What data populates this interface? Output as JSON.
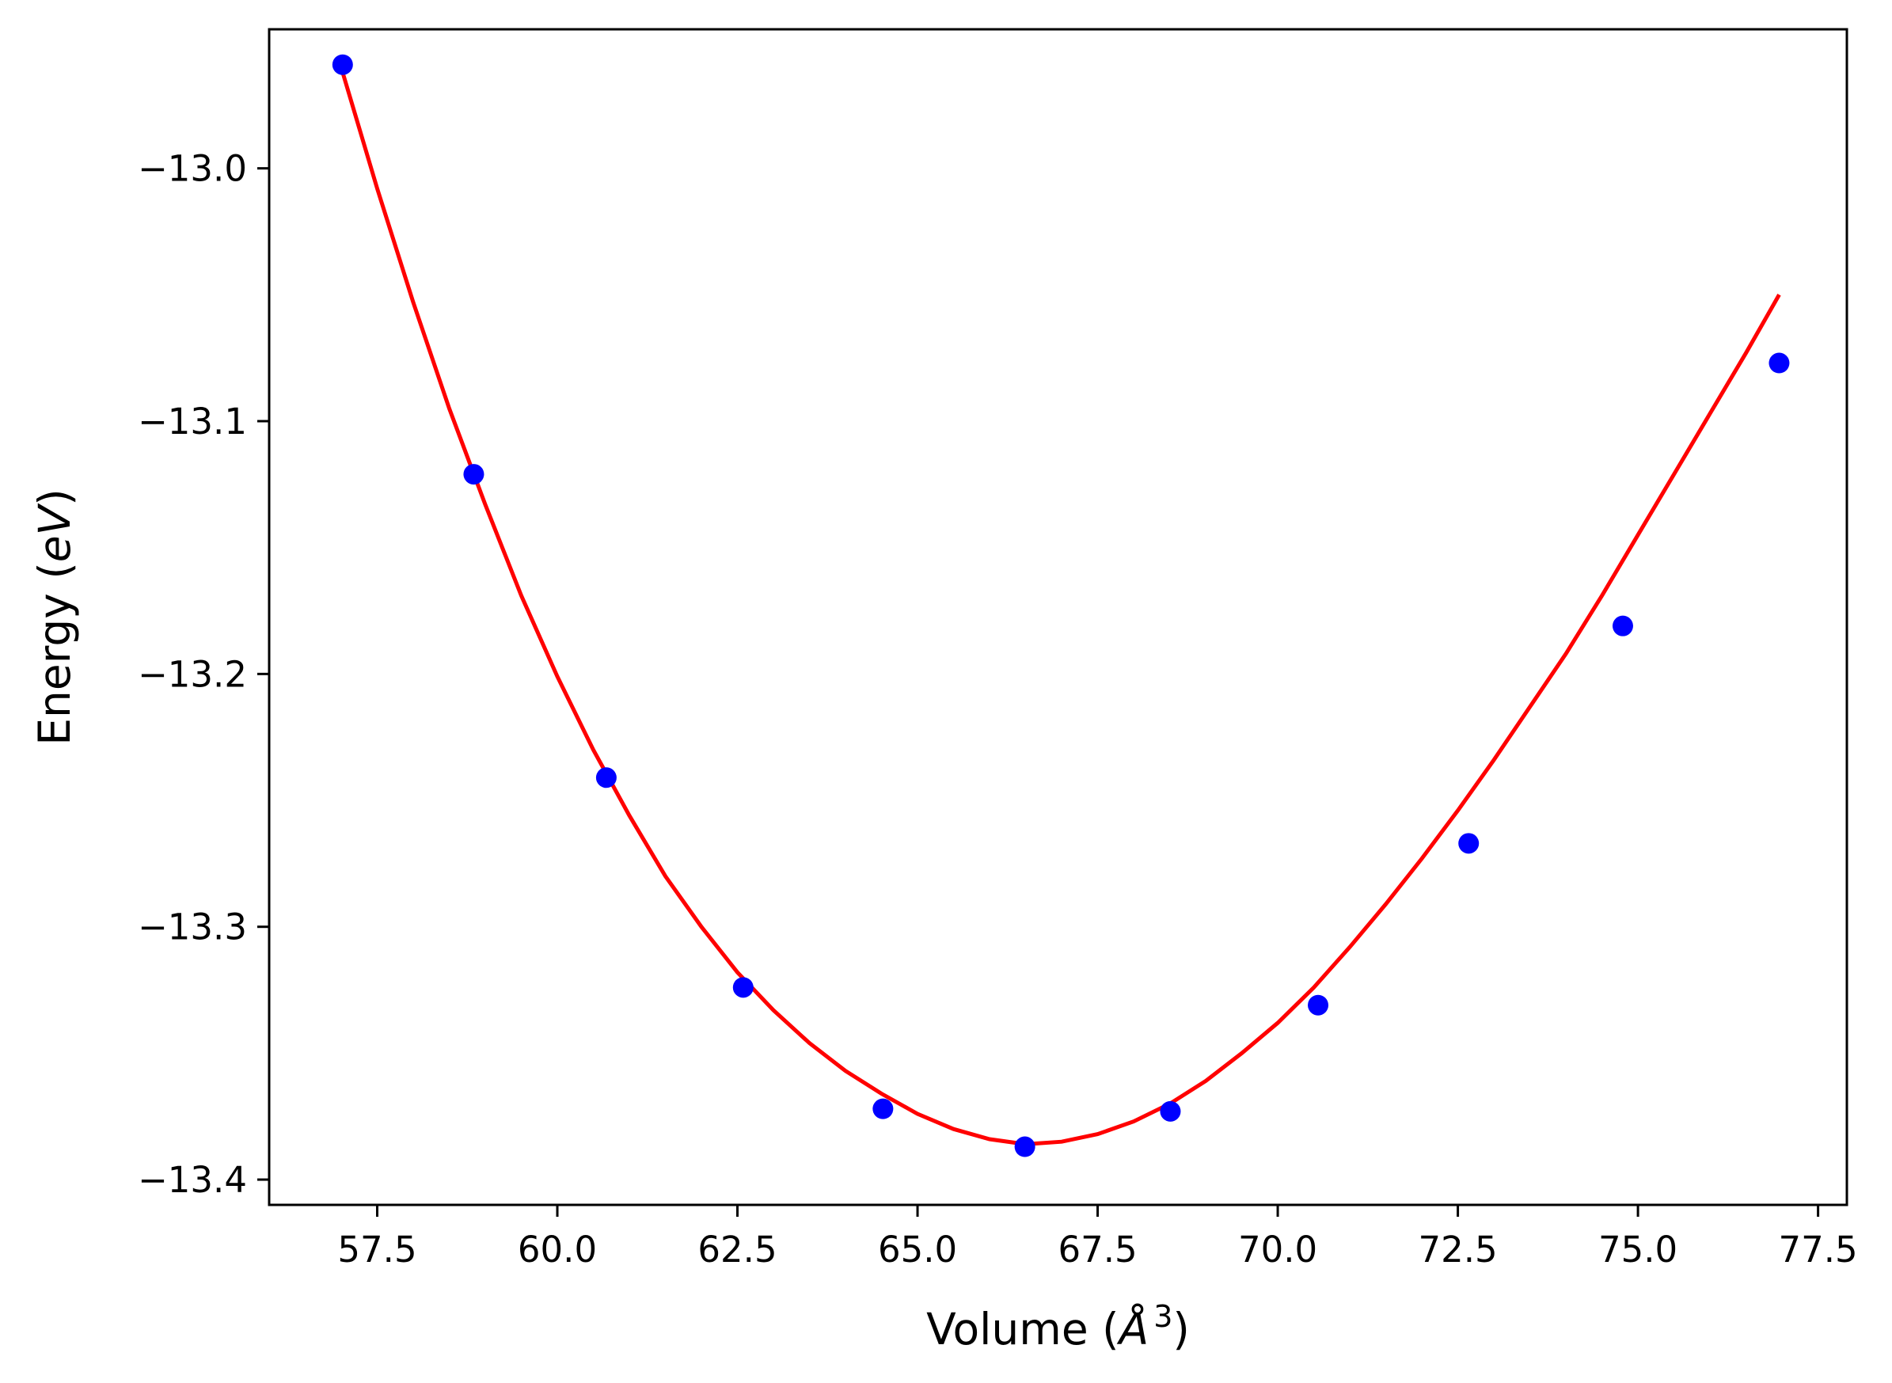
{
  "chart_data": {
    "type": "scatter",
    "xlabel": {
      "prefix": "Volume (",
      "symbol": "Å",
      "exponent": "3",
      "suffix": ")"
    },
    "ylabel": {
      "prefix": "Energy (",
      "symbol": "eV",
      "suffix": ")"
    },
    "xlim": [
      56.0,
      77.9
    ],
    "ylim": [
      -13.41,
      -12.945
    ],
    "x_ticks": [
      57.5,
      60.0,
      62.5,
      65.0,
      67.5,
      70.0,
      72.5,
      75.0,
      77.5
    ],
    "x_tick_labels": [
      "57.5",
      "60.0",
      "62.5",
      "65.0",
      "67.5",
      "70.0",
      "72.5",
      "75.0",
      "77.5"
    ],
    "y_ticks": [
      -13.0,
      -13.1,
      -13.2,
      -13.3,
      -13.4
    ],
    "y_tick_labels": [
      "−13.0",
      "−13.1",
      "−13.2",
      "−13.3",
      "−13.4"
    ],
    "grid": false,
    "series": [
      {
        "kind": "points",
        "color": "#0000ff",
        "x": [
          57.02,
          58.84,
          60.68,
          62.58,
          64.52,
          66.49,
          68.51,
          70.56,
          72.65,
          74.79,
          76.96
        ],
        "y": [
          -12.959,
          -13.121,
          -13.241,
          -13.324,
          -13.372,
          -13.387,
          -13.373,
          -13.331,
          -13.267,
          -13.181,
          -13.077
        ]
      },
      {
        "kind": "fit-curve",
        "color": "#ff0000",
        "x": [
          57.02,
          57.5,
          58.0,
          58.5,
          59.0,
          59.5,
          60.0,
          60.5,
          61.0,
          61.5,
          62.0,
          62.5,
          63.0,
          63.5,
          64.0,
          64.5,
          65.0,
          65.5,
          66.0,
          66.5,
          67.0,
          67.5,
          68.0,
          68.5,
          69.0,
          69.5,
          70.0,
          70.5,
          71.0,
          71.5,
          72.0,
          72.5,
          73.0,
          73.5,
          74.0,
          74.5,
          75.0,
          75.5,
          76.0,
          76.5,
          76.96
        ],
        "y": [
          -12.962,
          -13.008,
          -13.053,
          -13.095,
          -13.133,
          -13.169,
          -13.201,
          -13.23,
          -13.256,
          -13.28,
          -13.3,
          -13.318,
          -13.333,
          -13.346,
          -13.357,
          -13.366,
          -13.374,
          -13.38,
          -13.384,
          -13.386,
          -13.385,
          -13.382,
          -13.377,
          -13.37,
          -13.361,
          -13.35,
          -13.338,
          -13.324,
          -13.308,
          -13.291,
          -13.273,
          -13.254,
          -13.234,
          -13.213,
          -13.192,
          -13.169,
          -13.145,
          -13.121,
          -13.097,
          -13.073,
          -13.05
        ]
      }
    ]
  }
}
